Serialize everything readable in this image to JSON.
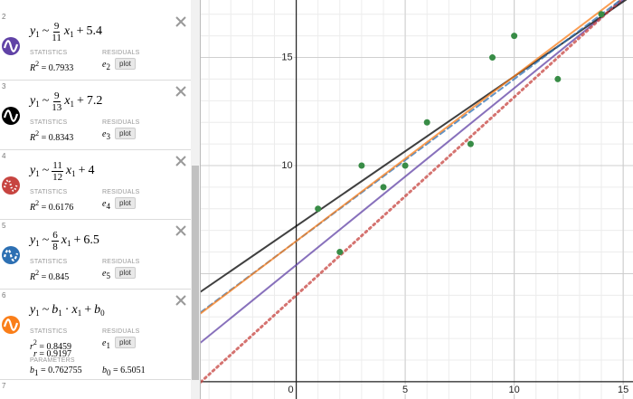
{
  "panel": {
    "rows": [
      {
        "index": "2",
        "color": "#6042a6",
        "line": "solid",
        "model": [
          {
            "t": "y",
            "sub": "1"
          },
          {
            "t": "~"
          },
          {
            "frac": [
              9,
              11
            ]
          },
          {
            "t": "x",
            "sub": "1"
          },
          {
            "t": "+"
          },
          {
            "n": 5.4
          }
        ],
        "statistics": {
          "heading": "STATISTICS",
          "items": [
            {
              "sym": "R",
              "pow": "2",
              "eq": "=",
              "value": 0.7933
            }
          ]
        },
        "residuals": {
          "heading": "RESIDUALS",
          "sym": "e",
          "sub": "2",
          "button": "plot"
        }
      },
      {
        "index": "3",
        "color": "#000000",
        "line": "solid",
        "model": [
          {
            "t": "y",
            "sub": "1"
          },
          {
            "t": "~"
          },
          {
            "frac": [
              9,
              13
            ]
          },
          {
            "t": "x",
            "sub": "1"
          },
          {
            "t": "+"
          },
          {
            "n": 7.2
          }
        ],
        "statistics": {
          "heading": "STATISTICS",
          "items": [
            {
              "sym": "R",
              "pow": "2",
              "eq": "=",
              "value": 0.8343
            }
          ]
        },
        "residuals": {
          "heading": "RESIDUALS",
          "sym": "e",
          "sub": "3",
          "button": "plot"
        }
      },
      {
        "index": "4",
        "color": "#c74440",
        "line": "dotted",
        "model": [
          {
            "t": "y",
            "sub": "1"
          },
          {
            "t": "~"
          },
          {
            "frac": [
              11,
              12
            ]
          },
          {
            "t": "x",
            "sub": "1"
          },
          {
            "t": "+"
          },
          {
            "n": 4
          }
        ],
        "statistics": {
          "heading": "STATISTICS",
          "items": [
            {
              "sym": "R",
              "pow": "2",
              "eq": "=",
              "value": 0.6176
            }
          ]
        },
        "residuals": {
          "heading": "RESIDUALS",
          "sym": "e",
          "sub": "4",
          "button": "plot"
        }
      },
      {
        "index": "5",
        "color": "#2d70b3",
        "line": "dashed",
        "model": [
          {
            "t": "y",
            "sub": "1"
          },
          {
            "t": "~"
          },
          {
            "frac": [
              6,
              8
            ]
          },
          {
            "t": "x",
            "sub": "1"
          },
          {
            "t": "+"
          },
          {
            "n": 6.5
          }
        ],
        "statistics": {
          "heading": "STATISTICS",
          "items": [
            {
              "sym": "R",
              "pow": "2",
              "eq": "=",
              "value": 0.845
            }
          ]
        },
        "residuals": {
          "heading": "RESIDUALS",
          "sym": "e",
          "sub": "5",
          "button": "plot"
        }
      },
      {
        "index": "6",
        "color": "#fa7e19",
        "line": "solid",
        "model": [
          {
            "t": "y",
            "sub": "1"
          },
          {
            "t": "~"
          },
          {
            "t": "b",
            "sub": "1"
          },
          {
            "t": "·"
          },
          {
            "t": "x",
            "sub": "1"
          },
          {
            "t": "+"
          },
          {
            "t": "b",
            "sub": "0"
          }
        ],
        "statistics": {
          "heading": "STATISTICS",
          "items": [
            {
              "sym": "r",
              "pow": "2",
              "eq": "=",
              "value": 0.8459
            },
            {
              "sym": "r",
              "eq": "=",
              "value": 0.9197
            }
          ]
        },
        "residuals": {
          "heading": "RESIDUALS",
          "sym": "e",
          "sub": "1",
          "button": "plot"
        },
        "parameters": {
          "heading": "PARAMETERS",
          "items": [
            {
              "sym": "b",
              "sub": "1",
              "eq": "=",
              "value": 0.762755
            },
            {
              "sym": "b",
              "sub": "0",
              "eq": "=",
              "value": 6.5051
            }
          ]
        }
      }
    ],
    "next_index": "7"
  },
  "graph": {
    "xlim": [
      -4.38,
      15.45
    ],
    "ylim": [
      -0.8,
      17.66
    ],
    "xticks": [
      0,
      5,
      10,
      15
    ],
    "yticks": [
      10,
      15
    ],
    "grid": true,
    "points": {
      "color": "#388c46",
      "x": [
        1,
        2,
        3,
        4,
        5,
        6,
        8,
        9,
        10,
        12,
        14
      ],
      "y": [
        8,
        6,
        10,
        9,
        10,
        12,
        11,
        15,
        16,
        14,
        17
      ]
    }
  }
}
